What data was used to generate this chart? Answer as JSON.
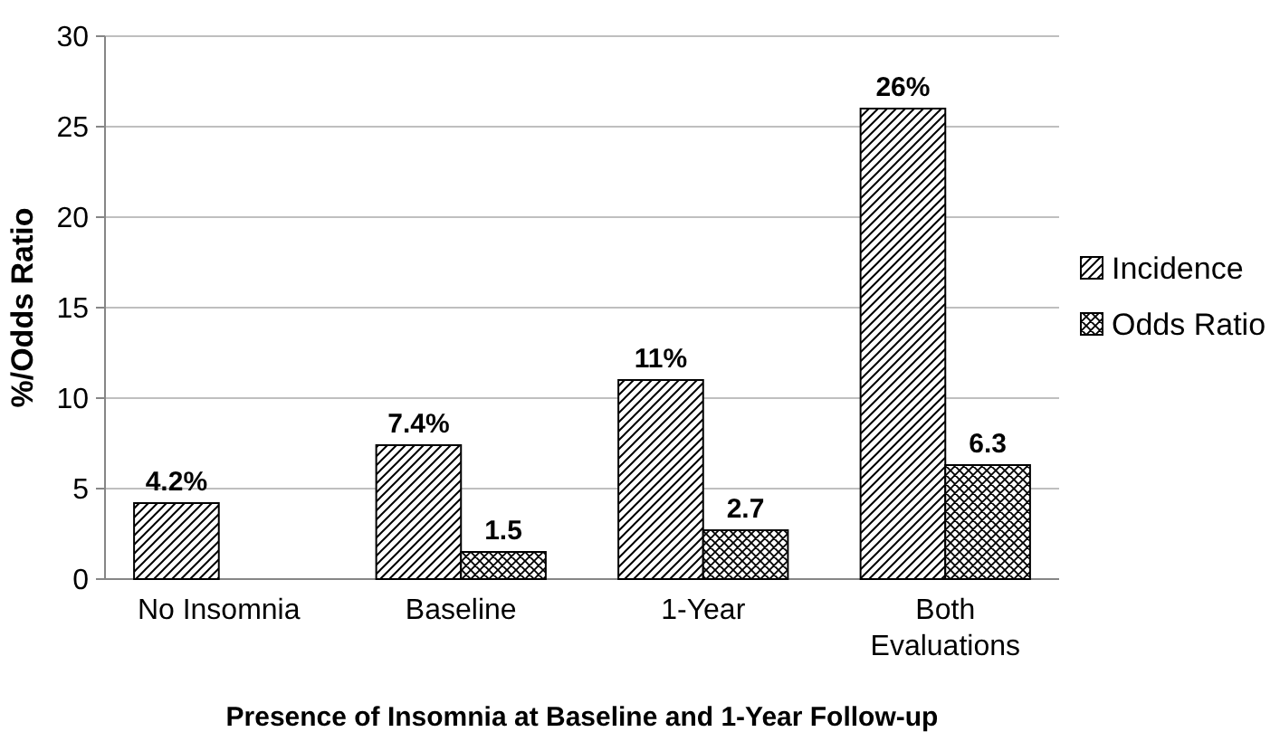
{
  "chart_data": {
    "type": "bar",
    "xlabel": "Presence of Insomnia at Baseline and 1-Year Follow-up",
    "ylabel": "%/Odds Ratio",
    "categories": [
      "No Insomnia",
      "Baseline",
      "1-Year",
      "Both Evaluations"
    ],
    "series": [
      {
        "name": "Incidence",
        "color": "#000000",
        "values": [
          4.2,
          7.4,
          11,
          26
        ],
        "value_labels": [
          "4.2%",
          "7.4%",
          "11%",
          "26%"
        ]
      },
      {
        "name": "Odds Ratio",
        "color": "#000000",
        "values": [
          null,
          1.5,
          2.7,
          6.3
        ],
        "value_labels": [
          null,
          "1.5",
          "2.7",
          "6.3"
        ]
      }
    ],
    "ylim": [
      0,
      30
    ],
    "yticks": [
      0,
      5,
      10,
      15,
      20,
      25,
      30
    ],
    "grid": "y",
    "legend": "right"
  }
}
